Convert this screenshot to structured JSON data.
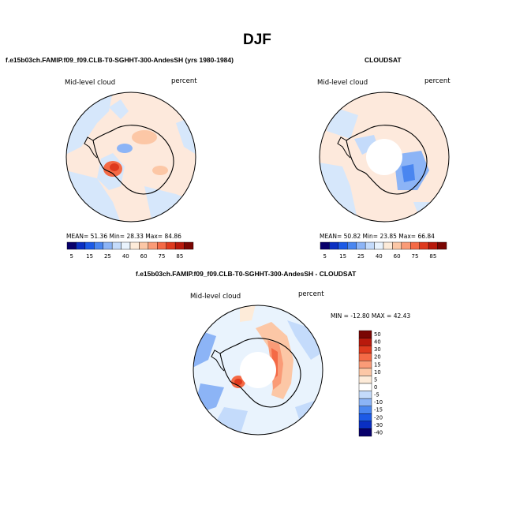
{
  "title": "DJF",
  "panels": [
    {
      "subtitle": "f.e15b03ch.FAMIP.f09_f09.CLB-T0-SGHHT-300-AndesSH (yrs 1980-1984)",
      "var_label": "Mid-level cloud",
      "unit_label": "percent",
      "stats": "MEAN=  51.36   Min=  28.33   Max=  84.86"
    },
    {
      "subtitle": "CLOUDSAT",
      "var_label": "Mid-level cloud",
      "unit_label": "percent",
      "stats": "MEAN=  50.82   Min=  23.85   Max=  66.84"
    },
    {
      "subtitle": "f.e15b03ch.FAMIP.f09_f09.CLB-T0-SGHHT-300-AndesSH - CLOUDSAT",
      "var_label": "Mid-level cloud",
      "unit_label": "percent",
      "stats": "MIN = -12.80  MAX =  42.43"
    }
  ],
  "colorbar_abs": {
    "labels": [
      "5",
      "15",
      "25",
      "40",
      "60",
      "75",
      "85",
      "95"
    ],
    "colors": [
      "#08006b",
      "#0a2fc2",
      "#1c5ae6",
      "#4a86f0",
      "#8cb4f6",
      "#c4dbfb",
      "#e9f3fd",
      "#fdebd9",
      "#fcc7a6",
      "#fa9b77",
      "#f46a46",
      "#de3a1e",
      "#b8190c",
      "#7a0603"
    ]
  },
  "colorbar_diff": {
    "labels": [
      "50",
      "40",
      "30",
      "20",
      "15",
      "10",
      "5",
      "0",
      "-5",
      "-10",
      "-15",
      "-20",
      "-30",
      "-40",
      "-50"
    ],
    "colors": [
      "#7a0603",
      "#b8190c",
      "#de3a1e",
      "#f46a46",
      "#fa9b77",
      "#fcc7a6",
      "#fdebd9",
      "#ffffff",
      "#c4dbfb",
      "#8cb4f6",
      "#4a86f0",
      "#1c5ae6",
      "#0a2fc2",
      "#08006b"
    ]
  },
  "chart_data": [
    {
      "type": "heatmap",
      "title": "f.e15b03ch.FAMIP.f09_f09.CLB-T0-SGHHT-300-AndesSH (yrs 1980-1984)",
      "projection": "south-polar stereographic",
      "variable": "Mid-level cloud",
      "unit": "percent",
      "mean": 51.36,
      "min": 28.33,
      "max": 84.86,
      "levels": [
        5,
        10,
        15,
        20,
        25,
        30,
        40,
        50,
        60,
        70,
        75,
        80,
        85,
        90,
        95
      ]
    },
    {
      "type": "heatmap",
      "title": "CLOUDSAT",
      "projection": "south-polar stereographic",
      "variable": "Mid-level cloud",
      "unit": "percent",
      "mean": 50.82,
      "min": 23.85,
      "max": 66.84,
      "levels": [
        5,
        10,
        15,
        20,
        25,
        30,
        40,
        50,
        60,
        70,
        75,
        80,
        85,
        90,
        95
      ]
    },
    {
      "type": "heatmap",
      "title": "f.e15b03ch.FAMIP.f09_f09.CLB-T0-SGHHT-300-AndesSH - CLOUDSAT",
      "projection": "south-polar stereographic",
      "variable": "Mid-level cloud",
      "unit": "percent",
      "min": -12.8,
      "max": 42.43,
      "levels": [
        -50,
        -40,
        -30,
        -20,
        -15,
        -10,
        -5,
        0,
        5,
        10,
        15,
        20,
        30,
        40,
        50
      ]
    }
  ]
}
